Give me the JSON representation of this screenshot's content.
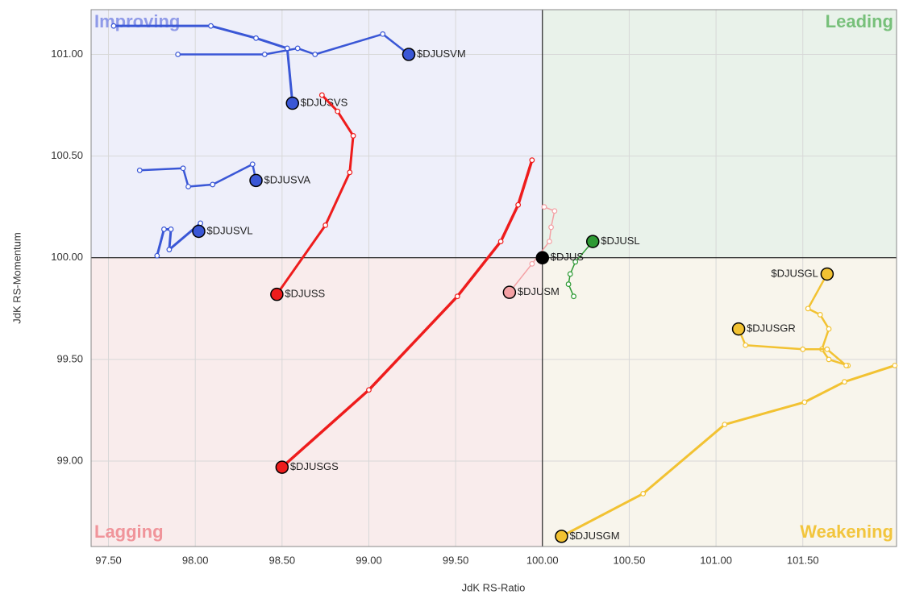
{
  "chart_data": {
    "type": "line",
    "x_label": "JdK RS-Ratio",
    "y_label": "JdK RS-Momentum",
    "xlim": [
      97.4,
      102.04
    ],
    "ylim": [
      98.58,
      101.22
    ],
    "center": [
      100,
      100
    ],
    "grid": true,
    "xticks": [
      {
        "value": 97.5,
        "label": "97.50"
      },
      {
        "value": 98,
        "label": "98.00"
      },
      {
        "value": 98.5,
        "label": "98.50"
      },
      {
        "value": 99,
        "label": "99.00"
      },
      {
        "value": 99.5,
        "label": "99.50"
      },
      {
        "value": 100,
        "label": "100.00"
      },
      {
        "value": 100.5,
        "label": "100.50"
      },
      {
        "value": 101,
        "label": "101.00"
      },
      {
        "value": 101.5,
        "label": "101.50"
      }
    ],
    "yticks": [
      {
        "value": 99,
        "label": "99.00"
      },
      {
        "value": 99.5,
        "label": "99.50"
      },
      {
        "value": 100,
        "label": "100.00"
      },
      {
        "value": 100.5,
        "label": "100.50"
      },
      {
        "value": 101,
        "label": "101.00"
      }
    ],
    "quadrants": [
      {
        "label": "Improving",
        "color": "#8f9ae8",
        "background": "#eeeffa"
      },
      {
        "label": "Leading",
        "color": "#77c07a",
        "background": "#e9f2ea"
      },
      {
        "label": "Lagging",
        "color": "#f0949a",
        "background": "#f9ecec"
      },
      {
        "label": "Weakening",
        "color": "#f2c53d",
        "background": "#f8f5ec"
      }
    ],
    "series": [
      {
        "name": "$DJUSVM",
        "color": "#3a57d6",
        "width": 2.5,
        "x": [
          97.9,
          98.4,
          98.59,
          98.69,
          99.08,
          99.23
        ],
        "y": [
          101.0,
          101.0,
          101.03,
          101.0,
          101.1,
          101.0
        ]
      },
      {
        "name": "$DJUSVS",
        "color": "#3a57d6",
        "width": 3,
        "x": [
          97.53,
          98.09,
          98.35,
          98.53,
          98.56
        ],
        "y": [
          101.14,
          101.14,
          101.08,
          101.03,
          100.76
        ]
      },
      {
        "name": "$DJUSVA",
        "color": "#3a57d6",
        "width": 2.5,
        "x": [
          97.68,
          97.93,
          97.96,
          98.1,
          98.33,
          98.35
        ],
        "y": [
          100.43,
          100.44,
          100.35,
          100.36,
          100.46,
          100.38
        ]
      },
      {
        "name": "$DJUSVL",
        "color": "#3a57d6",
        "width": 3,
        "x": [
          97.78,
          97.82,
          97.86,
          97.85,
          98.03,
          98.02
        ],
        "y": [
          100.01,
          100.14,
          100.14,
          100.04,
          100.17,
          100.13
        ]
      },
      {
        "name": "$DJUSS",
        "color": "#ee1c1c",
        "width": 3,
        "x": [
          98.73,
          98.82,
          98.91,
          98.89,
          98.75,
          98.47
        ],
        "y": [
          100.8,
          100.72,
          100.6,
          100.42,
          100.16,
          99.82
        ]
      },
      {
        "name": "$DJUSGS",
        "color": "#ee1c1c",
        "width": 3.5,
        "x": [
          99.94,
          99.86,
          99.76,
          99.51,
          99.0,
          98.5
        ],
        "y": [
          100.48,
          100.26,
          100.08,
          99.81,
          99.35,
          98.97
        ]
      },
      {
        "name": "$DJUSM",
        "color": "#f4a0a4",
        "width": 1.5,
        "x": [
          100.01,
          100.07,
          100.05,
          100.04,
          99.94,
          99.81
        ],
        "y": [
          100.25,
          100.23,
          100.15,
          100.08,
          99.97,
          99.83
        ]
      },
      {
        "name": "$DJUSL",
        "color": "#2e9a34",
        "width": 1.5,
        "x": [
          100.18,
          100.15,
          100.16,
          100.19,
          100.29
        ],
        "y": [
          99.81,
          99.87,
          99.92,
          99.98,
          100.08
        ]
      },
      {
        "name": "$DJUS",
        "color": "#000000",
        "width": 1.5,
        "x": [
          100
        ],
        "y": [
          100
        ]
      },
      {
        "name": "$DJUSGL",
        "color": "#f2c232",
        "width": 2.5,
        "x": [
          101.76,
          101.65,
          101.61,
          101.65,
          101.6,
          101.53,
          101.64
        ],
        "y": [
          99.47,
          99.5,
          99.55,
          99.65,
          99.72,
          99.75,
          99.92
        ]
      },
      {
        "name": "$DJUSGR",
        "color": "#f2c232",
        "width": 2.5,
        "x": [
          101.75,
          101.64,
          101.5,
          101.17,
          101.13
        ],
        "y": [
          99.47,
          99.55,
          99.55,
          99.57,
          99.65
        ]
      },
      {
        "name": "$DJUSGM",
        "color": "#f2c232",
        "width": 3,
        "x": [
          102.03,
          101.74,
          101.51,
          101.05,
          100.58,
          100.11
        ],
        "y": [
          99.47,
          99.39,
          99.29,
          99.18,
          98.84,
          98.63
        ]
      }
    ]
  }
}
